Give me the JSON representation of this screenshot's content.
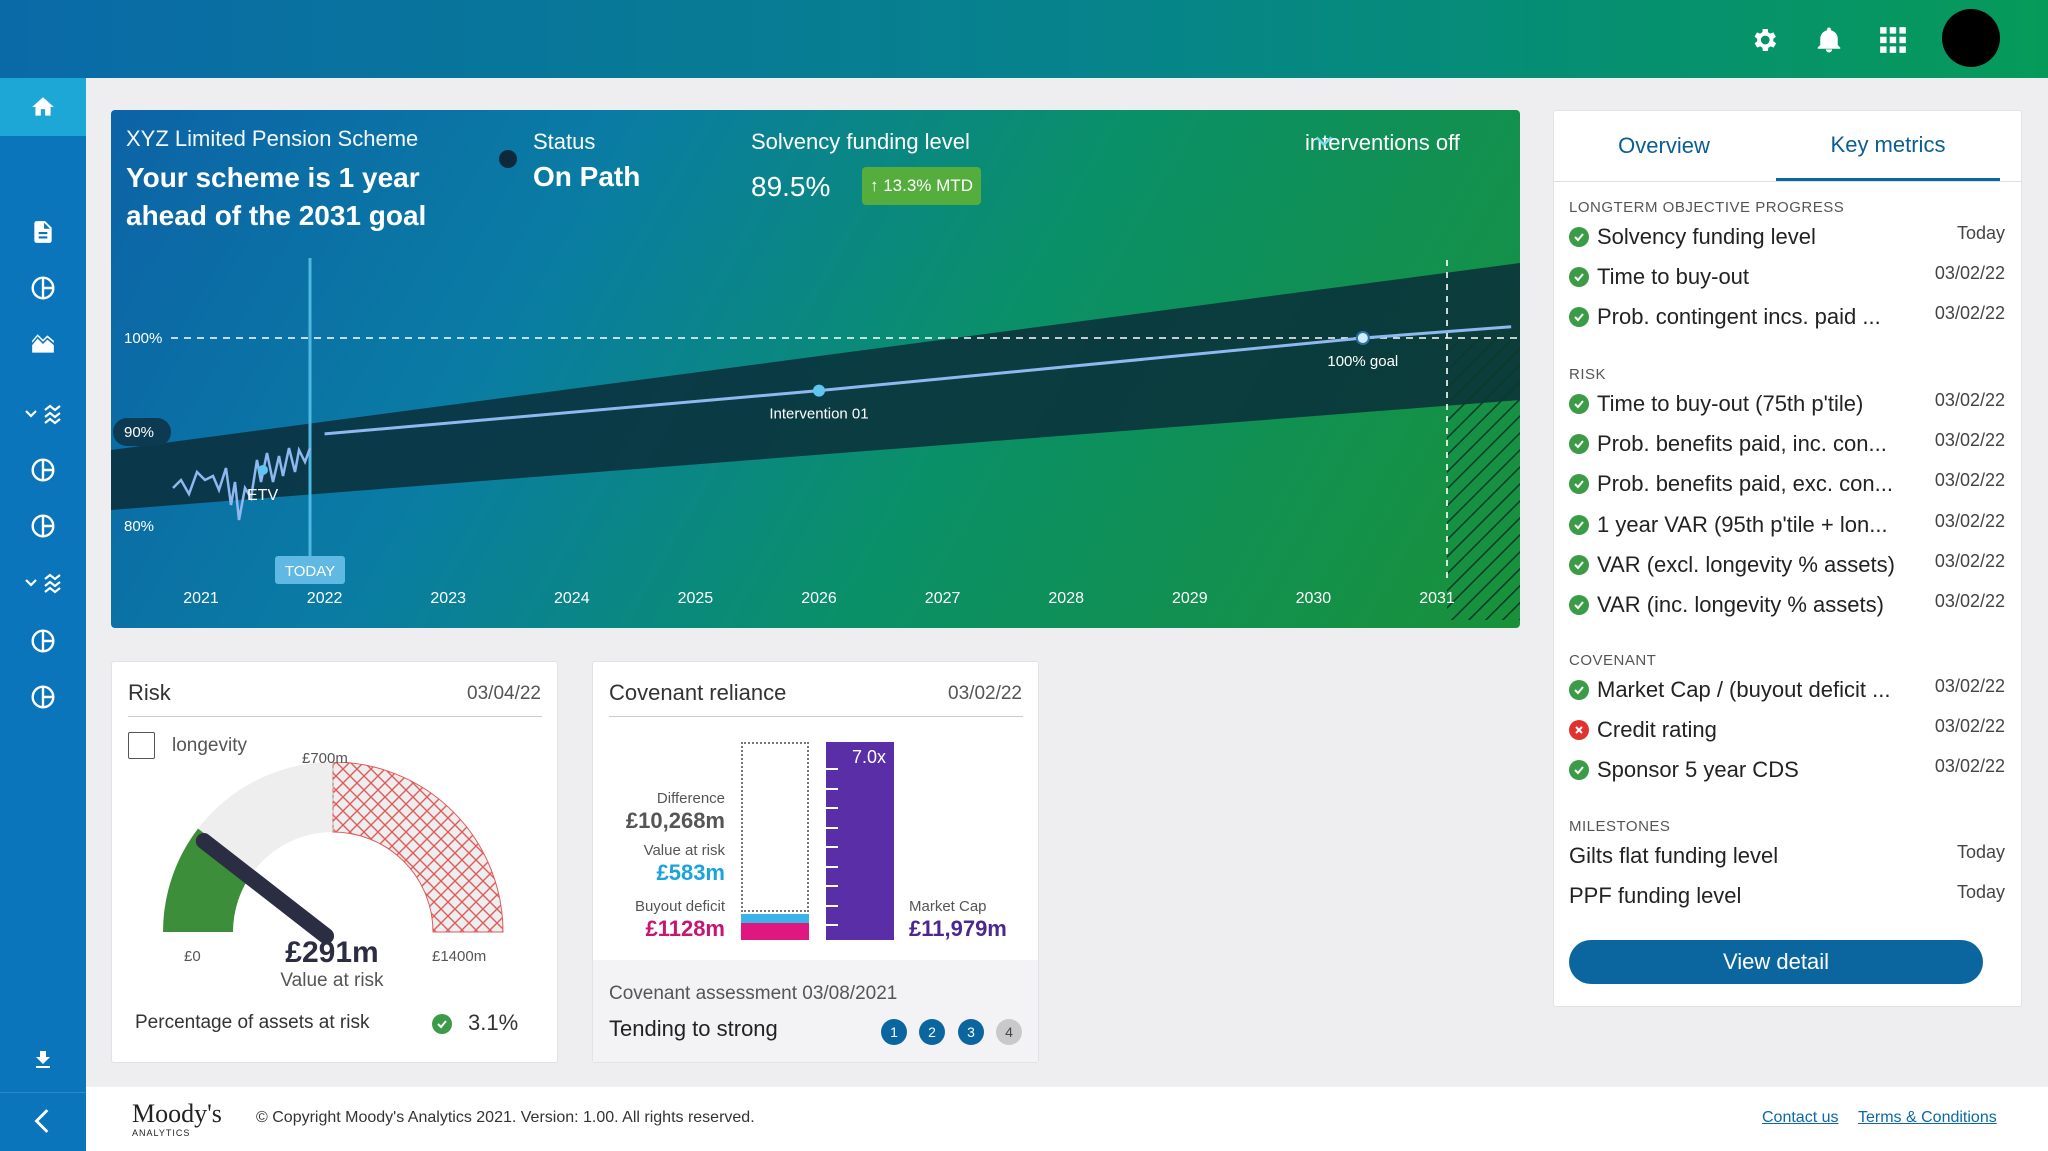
{
  "header": {
    "icons": [
      "gear-icon",
      "bell-icon",
      "apps-grid-icon"
    ]
  },
  "hero": {
    "scheme_name": "XYZ Limited Pension Scheme",
    "headline_line1": "Your scheme is 1 year",
    "headline_line2": "ahead of the 2031 goal",
    "status_label": "Status",
    "status_value": "On Path",
    "solvency_label": "Solvency funding level",
    "solvency_value": "89.5%",
    "mtd_badge": "↑ 13.3% MTD",
    "interventions": "interventions off"
  },
  "chart_data": {
    "type": "line",
    "x_ticks": [
      "2021",
      "2022",
      "2023",
      "2024",
      "2025",
      "2026",
      "2027",
      "2028",
      "2029",
      "2030",
      "2031"
    ],
    "y_ticks": [
      "100%",
      "90%",
      "80%"
    ],
    "annotations": [
      "TODAY",
      "ETV",
      "Intervention 01",
      "100% goal"
    ],
    "goal_line": 100,
    "series": [
      {
        "x": [
          2022,
          2026,
          2030.4,
          2031.6
        ],
        "values": [
          89.8,
          94.4,
          100,
          101.2
        ]
      }
    ]
  },
  "risk": {
    "title": "Risk",
    "date": "03/04/22",
    "longevity_label": "longevity",
    "gauge_max_label": "£700m",
    "gauge_min_label": "£0",
    "gauge_end_label": "£1400m",
    "value": "£291m",
    "value_caption": "Value at risk",
    "pct_label": "Percentage of assets at risk",
    "pct_value": "3.1%",
    "gauge_fraction": 0.208
  },
  "covenant": {
    "title": "Covenant reliance",
    "date": "03/02/22",
    "difference_label": "Difference",
    "difference_value": "£10,268m",
    "var_label": "Value at risk",
    "var_value": "£583m",
    "buyout_label": "Buyout deficit",
    "buyout_value": "£1128m",
    "ratio": "7.0x",
    "marketcap_label": "Market Cap",
    "marketcap_value": "£11,979m",
    "assessment": "Covenant assessment 03/08/2021",
    "trend": "Tending to strong",
    "steps": [
      "1",
      "2",
      "3",
      "4"
    ]
  },
  "key_metrics": {
    "tab_overview": "Overview",
    "tab_key": "Key metrics",
    "sections": [
      {
        "title": "LONGTERM OBJECTIVE PROGRESS",
        "rows": [
          {
            "label": "Solvency funding level",
            "date": "Today",
            "status": "ok"
          },
          {
            "label": "Time to buy-out",
            "date": "03/02/22",
            "status": "ok"
          },
          {
            "label": "Prob. contingent incs. paid ...",
            "date": "03/02/22",
            "status": "ok"
          }
        ]
      },
      {
        "title": "RISK",
        "rows": [
          {
            "label": "Time to buy-out (75th p'tile)",
            "date": "03/02/22",
            "status": "ok"
          },
          {
            "label": "Prob. benefits paid, inc. con...",
            "date": "03/02/22",
            "status": "ok"
          },
          {
            "label": "Prob. benefits paid, exc. con...",
            "date": "03/02/22",
            "status": "ok"
          },
          {
            "label": "1 year VAR (95th p'tile + lon...",
            "date": "03/02/22",
            "status": "ok"
          },
          {
            "label": "VAR (excl. longevity % assets)",
            "date": "03/02/22",
            "status": "ok"
          },
          {
            "label": "VAR (inc. longevity % assets)",
            "date": "03/02/22",
            "status": "ok"
          }
        ]
      },
      {
        "title": "COVENANT",
        "rows": [
          {
            "label": "Market Cap / (buyout deficit ...",
            "date": "03/02/22",
            "status": "ok"
          },
          {
            "label": "Credit rating",
            "date": "03/02/22",
            "status": "bad"
          },
          {
            "label": "Sponsor 5 year CDS",
            "date": "03/02/22",
            "status": "ok"
          }
        ]
      },
      {
        "title": "MILESTONES",
        "rows": [
          {
            "label": "Gilts flat funding level",
            "date": "Today",
            "status": "none"
          },
          {
            "label": "PPF funding level",
            "date": "Today",
            "status": "none"
          }
        ]
      }
    ],
    "view_detail": "View detail"
  },
  "footer": {
    "logo_main": "Moody's",
    "logo_sub": "ANALYTICS",
    "copyright": "© Copyright Moody's Analytics 2021. Version: 1.00.  All rights reserved.",
    "contact": "Contact us",
    "terms": "Terms & Conditions"
  }
}
